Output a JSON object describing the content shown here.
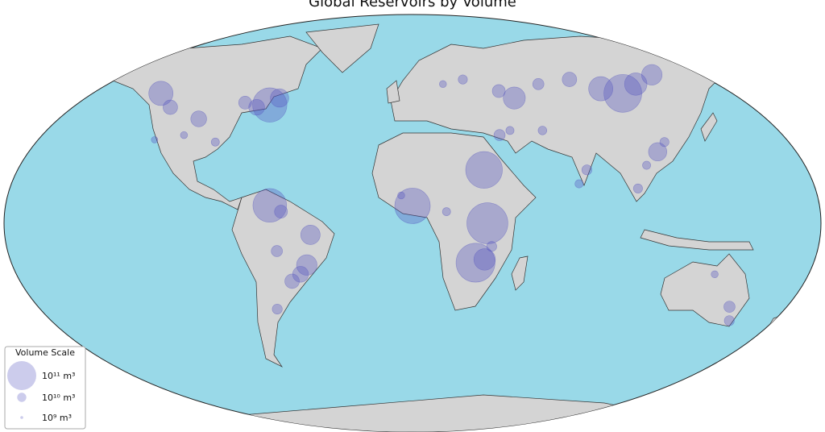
{
  "title": "Global Reservoirs by Volume",
  "color": "#5555c0",
  "legend": {
    "title": "Volume Scale",
    "entries": [
      {
        "value": 100000000000,
        "label": "10¹¹ m³"
      },
      {
        "value": 10000000000,
        "label": "10¹⁰ m³"
      },
      {
        "value": 1000000000,
        "label": "10⁹ m³"
      }
    ]
  },
  "reservoirs": [
    {
      "lon": 28,
      "lat": -17,
      "volume": 180000000000
    },
    {
      "lon": 0,
      "lat": 7.5,
      "volume": 150000000000
    },
    {
      "lon": 32,
      "lat": 23,
      "volume": 160000000000
    },
    {
      "lon": 33,
      "lat": 0,
      "volume": 200000000000
    },
    {
      "lon": 102,
      "lat": 56,
      "volume": 170000000000
    },
    {
      "lon": 92,
      "lat": 58,
      "volume": 70000000000
    },
    {
      "lon": 110,
      "lat": 60,
      "volume": 60000000000
    },
    {
      "lon": 120,
      "lat": 64,
      "volume": 50000000000
    },
    {
      "lon": 49,
      "lat": 54,
      "volume": 58000000000
    },
    {
      "lon": 42,
      "lat": 57,
      "volume": 20000000000
    },
    {
      "lon": 62,
      "lat": 60,
      "volume": 15000000000
    },
    {
      "lon": 78,
      "lat": 62,
      "volume": 25000000000
    },
    {
      "lon": -63,
      "lat": 7.7,
      "volume": 135000000000
    },
    {
      "lon": -58,
      "lat": 5,
      "volume": 20000000000
    },
    {
      "lon": -45,
      "lat": -5,
      "volume": 45000000000
    },
    {
      "lon": -47,
      "lat": -18,
      "volume": 50000000000
    },
    {
      "lon": -50,
      "lat": -22,
      "volume": 30000000000
    },
    {
      "lon": -54,
      "lat": -25,
      "volume": 25000000000
    },
    {
      "lon": -60,
      "lat": -12,
      "volume": 15000000000
    },
    {
      "lon": -62,
      "lat": -37,
      "volume": 12000000000
    },
    {
      "lon": -68,
      "lat": 51,
      "volume": 140000000000
    },
    {
      "lon": -64,
      "lat": 54,
      "volume": 40000000000
    },
    {
      "lon": -74,
      "lat": 50,
      "volume": 30000000000
    },
    {
      "lon": -80,
      "lat": 52,
      "volume": 20000000000
    },
    {
      "lon": -122,
      "lat": 56,
      "volume": 70000000000
    },
    {
      "lon": -115,
      "lat": 50,
      "volume": 25000000000
    },
    {
      "lon": -100,
      "lat": 45,
      "volume": 30000000000
    },
    {
      "lon": -90,
      "lat": 35,
      "volume": 8000000000
    },
    {
      "lon": -105,
      "lat": 38,
      "volume": 6000000000
    },
    {
      "lon": -118,
      "lat": 36,
      "volume": 5000000000
    },
    {
      "lon": 32,
      "lat": -15.6,
      "volume": 55000000000
    },
    {
      "lon": 35,
      "lat": -10,
      "volume": 12000000000
    },
    {
      "lon": 15,
      "lat": 5,
      "volume": 8000000000
    },
    {
      "lon": -5,
      "lat": 12,
      "volume": 6000000000
    },
    {
      "lon": 111,
      "lat": 30.8,
      "volume": 40000000000
    },
    {
      "lon": 115,
      "lat": 35,
      "volume": 10000000000
    },
    {
      "lon": 105,
      "lat": 25,
      "volume": 8000000000
    },
    {
      "lon": 78,
      "lat": 23,
      "volume": 12000000000
    },
    {
      "lon": 74,
      "lat": 17,
      "volume": 8000000000
    },
    {
      "lon": 40,
      "lat": 38,
      "volume": 15000000000
    },
    {
      "lon": 45,
      "lat": 40,
      "volume": 8000000000
    },
    {
      "lon": 25,
      "lat": 62,
      "volume": 10000000000
    },
    {
      "lon": 15,
      "lat": 60,
      "volume": 6000000000
    },
    {
      "lon": 145,
      "lat": -36,
      "volume": 15000000000
    },
    {
      "lon": 147,
      "lat": -42,
      "volume": 12000000000
    },
    {
      "lon": 135,
      "lat": -22,
      "volume": 6000000000
    },
    {
      "lon": 100,
      "lat": 15,
      "volume": 10000000000
    },
    {
      "lon": 60,
      "lat": 40,
      "volume": 9000000000
    }
  ]
}
